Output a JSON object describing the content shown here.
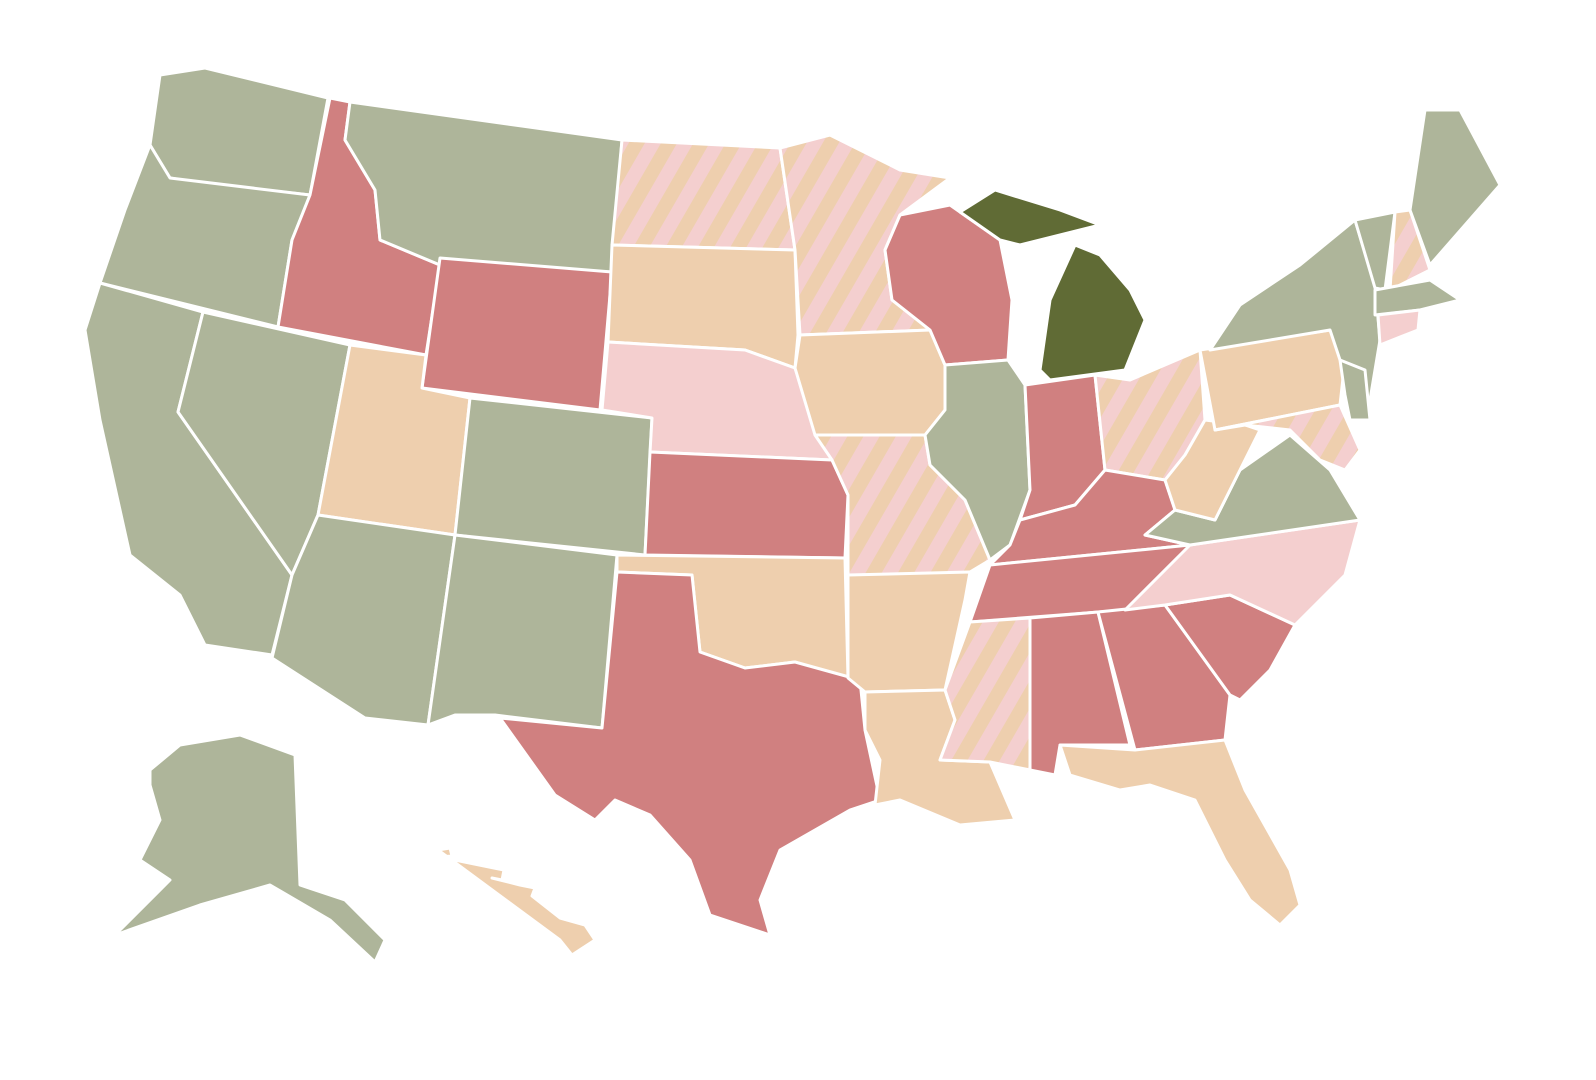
{
  "map": {
    "background": "#ffffff",
    "border_color": "#ffffff",
    "regions": [
      {
        "color": "#aeb59a"
      },
      {
        "color": "#aeb59a"
      },
      {
        "color": "#aeb59a"
      },
      {
        "color": "#aeb59a"
      },
      {
        "color": "#d08080"
      },
      {
        "color": "#aeb59a"
      },
      {
        "color": "#d08080"
      },
      {
        "color": "#eecfae"
      },
      {
        "color": "#aeb59a"
      },
      {
        "color": "#aeb59a"
      },
      {
        "color": "#aeb59a"
      },
      {
        "color": "#f4cfcf",
        "stripe": "#eecfae"
      },
      {
        "color": "#eecfae"
      },
      {
        "color": "#f4cfcf"
      },
      {
        "color": "#d08080"
      },
      {
        "color": "#eecfae"
      },
      {
        "color": "#d08080"
      },
      {
        "color": "#f4cfcf",
        "stripe": "#eecfae"
      },
      {
        "color": "#eecfae"
      },
      {
        "color": "#f4cfcf",
        "stripe": "#eecfae"
      },
      {
        "color": "#eecfae"
      },
      {
        "color": "#eecfae"
      },
      {
        "color": "#d08080"
      },
      {
        "color": "#aeb59a"
      },
      {
        "color": "#606b35"
      },
      {
        "color": "#606b35"
      },
      {
        "color": "#d08080"
      },
      {
        "color": "#f4cfcf",
        "stripe": "#eecfae"
      },
      {
        "color": "#d08080"
      },
      {
        "color": "#d08080"
      },
      {
        "color": "#f4cfcf",
        "stripe": "#eecfae"
      },
      {
        "color": "#d08080"
      },
      {
        "color": "#d08080"
      },
      {
        "color": "#eecfae"
      },
      {
        "color": "#d08080"
      },
      {
        "color": "#f4cfcf"
      },
      {
        "color": "#aeb59a"
      },
      {
        "color": "#eecfae"
      },
      {
        "color": "#eecfae"
      },
      {
        "color": "#aeb59a"
      },
      {
        "color": "#f4cfcf",
        "stripe": "#eecfae"
      },
      {
        "color": "#aeb59a"
      },
      {
        "color": "#aeb59a"
      },
      {
        "color": "#f4cfcf",
        "stripe": "#eecfae"
      },
      {
        "color": "#aeb59a"
      },
      {
        "color": "#aeb59a"
      },
      {
        "color": "#f4cfcf"
      },
      {
        "color": "#aeb59a"
      },
      {
        "color": "#eecfae"
      }
    ]
  }
}
